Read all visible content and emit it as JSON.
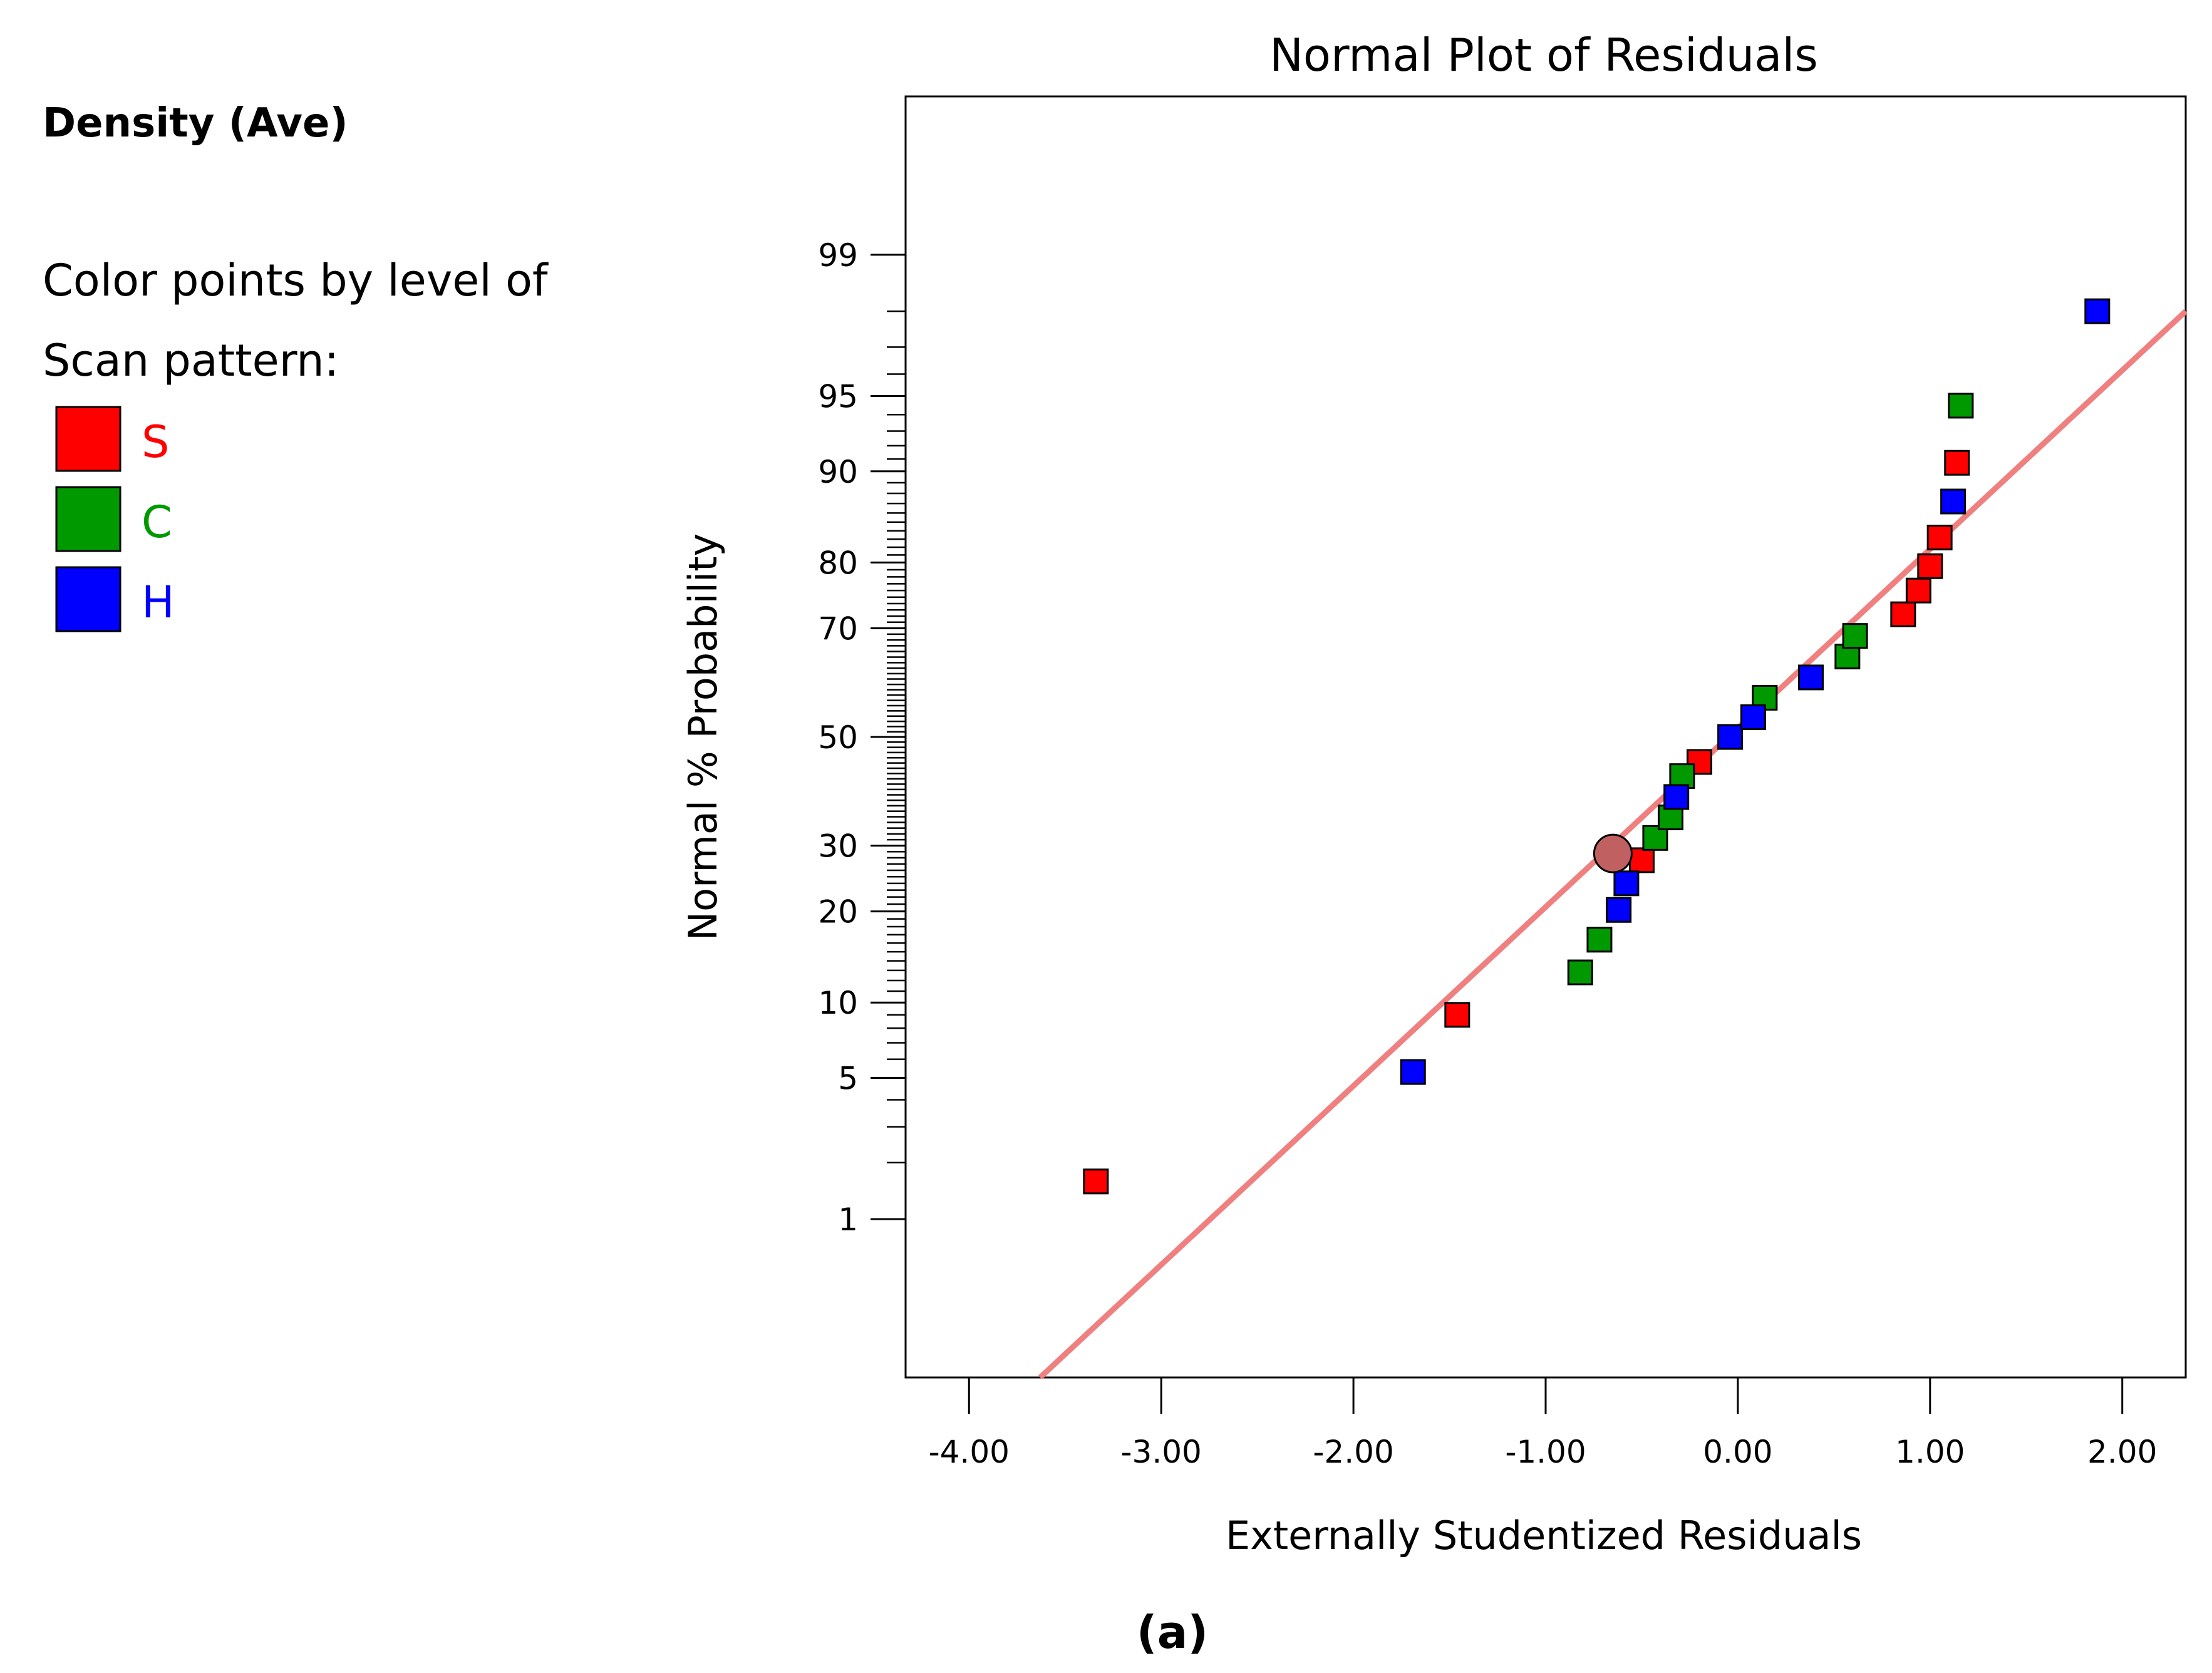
{
  "sidebar": {
    "response_title": "Density (Ave)",
    "color_note_line1": "Color points by level of",
    "color_note_line2": "Scan pattern:",
    "legend": [
      {
        "label": "S",
        "color": "#ff0000"
      },
      {
        "label": "C",
        "color": "#009900"
      },
      {
        "label": "H",
        "color": "#0000ff"
      }
    ]
  },
  "caption": "(a)",
  "chart_data": {
    "type": "scatter",
    "title": "Normal Plot of Residuals",
    "xlabel": "Externally Studentized Residuals",
    "ylabel": "Normal % Probability",
    "x_range": [
      -4.33,
      2.33
    ],
    "x_ticks": [
      -4,
      -3,
      -2,
      -1,
      0,
      1,
      2
    ],
    "x_tick_labels": [
      "-4.00",
      "-3.00",
      "-2.00",
      "-1.00",
      "0.00",
      "1.00",
      "2.00"
    ],
    "y_scale": "normal-probability",
    "y_range": [
      0.1,
      99.9
    ],
    "y_ticks": [
      1,
      5,
      10,
      20,
      30,
      50,
      70,
      80,
      90,
      95,
      99
    ],
    "y_tick_labels": [
      "1",
      "5",
      "10",
      "20",
      "30",
      "50",
      "70",
      "80",
      "90",
      "95",
      "99"
    ],
    "grid": false,
    "reference_line": {
      "color": "#f08080",
      "points": [
        [
          -3.63,
          0.1
        ],
        [
          2.33,
          98.0
        ]
      ]
    },
    "highlight_point": {
      "x": -0.65,
      "y": 28.7,
      "color": "#c06060"
    },
    "series": [
      {
        "name": "S",
        "color": "#ff0000",
        "points": [
          {
            "x": -3.34,
            "y": 1.6
          },
          {
            "x": -1.46,
            "y": 9.0
          },
          {
            "x": -0.5,
            "y": 27.6
          },
          {
            "x": -0.2,
            "y": 45.2
          },
          {
            "x": 0.86,
            "y": 72.3
          },
          {
            "x": 0.94,
            "y": 76.0
          },
          {
            "x": 1.0,
            "y": 79.5
          },
          {
            "x": 1.05,
            "y": 83.2
          },
          {
            "x": 1.14,
            "y": 90.7
          }
        ]
      },
      {
        "name": "C",
        "color": "#009900",
        "points": [
          {
            "x": -0.82,
            "y": 12.8
          },
          {
            "x": -0.72,
            "y": 16.4
          },
          {
            "x": -0.43,
            "y": 31.3
          },
          {
            "x": -0.35,
            "y": 34.9
          },
          {
            "x": -0.29,
            "y": 42.5
          },
          {
            "x": 0.14,
            "y": 57.5
          },
          {
            "x": 0.57,
            "y": 65.1
          },
          {
            "x": 0.61,
            "y": 68.7
          },
          {
            "x": 1.16,
            "y": 94.5
          }
        ]
      },
      {
        "name": "H",
        "color": "#0000ff",
        "points": [
          {
            "x": -1.69,
            "y": 5.3
          },
          {
            "x": -0.62,
            "y": 20.2
          },
          {
            "x": -0.58,
            "y": 24.0
          },
          {
            "x": -0.32,
            "y": 38.6
          },
          {
            "x": -0.04,
            "y": 50.0
          },
          {
            "x": 0.08,
            "y": 53.8
          },
          {
            "x": 0.38,
            "y": 61.3
          },
          {
            "x": 1.12,
            "y": 87.2
          },
          {
            "x": 1.87,
            "y": 98.0
          }
        ]
      }
    ]
  }
}
